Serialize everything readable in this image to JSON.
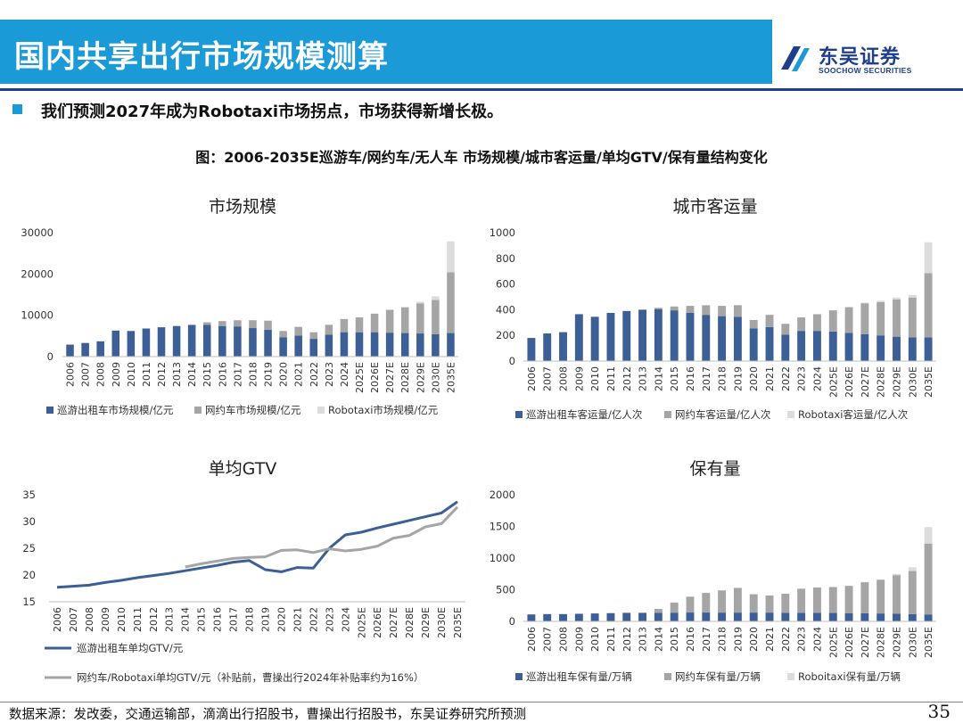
{
  "header": {
    "title": "国内共享出行市场规模测算",
    "logo_cn": "东吴证券",
    "logo_en": "SOOCHOW SECURITIES"
  },
  "bullet": "我们预测2027年成为Robotaxi市场拐点，市场获得新增长极。",
  "figure_caption": "图：2006-2035E巡游车/网约车/无人车 市场规模/城市客运量/单均GTV/保有量结构变化",
  "footer": {
    "source": "数据来源：发改委，交通运输部，滴滴出行招股书，曹操出行招股书，东吴证券研究所预测",
    "page": "35"
  },
  "colors": {
    "series1": "#3c5f95",
    "series2": "#a5a5a5",
    "series3": "#dcdcdc",
    "header": "#1a9bd7"
  },
  "chart_data": [
    {
      "id": "market",
      "type": "bar",
      "stacked": true,
      "title": "市场规模",
      "categories": [
        "2006",
        "2007",
        "2008",
        "2009",
        "2010",
        "2011",
        "2012",
        "2013",
        "2014",
        "2015",
        "2016",
        "2017",
        "2018",
        "2019",
        "2020",
        "2021",
        "2022",
        "2023",
        "2024",
        "2025E",
        "2026E",
        "2027E",
        "2028E",
        "2029E",
        "2030E",
        "2035E"
      ],
      "ylim": [
        0,
        30000
      ],
      "yticks": [
        "30000",
        "20000",
        "10000",
        "0"
      ],
      "series": [
        {
          "name": "巡游出租车市场规模/亿元",
          "values": [
            2900,
            3300,
            3700,
            6300,
            6200,
            6800,
            7100,
            7400,
            7600,
            7700,
            7400,
            7300,
            6900,
            6500,
            4700,
            5100,
            4300,
            5300,
            5900,
            5900,
            5900,
            5800,
            5700,
            5600,
            5400,
            5700
          ]
        },
        {
          "name": "网约车市场规模/亿元",
          "values": [
            0,
            0,
            0,
            0,
            0,
            0,
            0,
            0,
            200,
            600,
            1200,
            1500,
            1900,
            2200,
            1500,
            2100,
            1600,
            2400,
            3200,
            3600,
            4500,
            5500,
            6200,
            7300,
            8300,
            14700
          ]
        },
        {
          "name": "Robotaxi市场规模/亿元",
          "values": [
            0,
            0,
            0,
            0,
            0,
            0,
            0,
            0,
            0,
            0,
            0,
            0,
            0,
            0,
            0,
            0,
            0,
            0,
            0,
            0,
            0,
            100,
            200,
            400,
            900,
            7500
          ]
        }
      ],
      "legend": [
        "巡游出租车市场规模/亿元",
        "网约车市场规模/亿元",
        "Robotaxi市场规模/亿元"
      ]
    },
    {
      "id": "traffic",
      "type": "bar",
      "stacked": true,
      "title": "城市客运量",
      "categories": [
        "2006",
        "2007",
        "2008",
        "2009",
        "2010",
        "2011",
        "2012",
        "2013",
        "2014",
        "2015",
        "2016",
        "2017",
        "2018",
        "2019",
        "2020",
        "2021",
        "2022",
        "2023",
        "2024",
        "2025E",
        "2026E",
        "2027E",
        "2028E",
        "2029E",
        "2030E",
        "2035E"
      ],
      "ylim": [
        0,
        1000
      ],
      "yticks": [
        "1000",
        "800",
        "600",
        "400",
        "200",
        "0"
      ],
      "series": [
        {
          "name": "巡游出租车客运量/亿人次",
          "values": [
            180,
            215,
            225,
            365,
            345,
            375,
            390,
            400,
            405,
            395,
            375,
            360,
            350,
            345,
            255,
            265,
            205,
            235,
            235,
            230,
            220,
            210,
            200,
            190,
            185,
            185
          ]
        },
        {
          "name": "网约车客运量/亿人次",
          "values": [
            0,
            0,
            0,
            0,
            0,
            0,
            0,
            0,
            10,
            30,
            55,
            75,
            80,
            90,
            65,
            95,
            85,
            105,
            130,
            165,
            200,
            240,
            260,
            290,
            310,
            500
          ]
        },
        {
          "name": "Robotaxi客运量/亿人次",
          "values": [
            0,
            0,
            0,
            0,
            0,
            0,
            0,
            0,
            0,
            0,
            0,
            0,
            0,
            0,
            0,
            0,
            0,
            0,
            0,
            0,
            0,
            5,
            10,
            15,
            20,
            240
          ]
        }
      ],
      "legend": [
        "巡游出租车客运量/亿人次",
        "网约车客运量/亿人次",
        "Robotaxi客运量/亿人次"
      ]
    },
    {
      "id": "gtv",
      "type": "line",
      "title": "单均GTV",
      "categories": [
        "2006",
        "2007",
        "2008",
        "2009",
        "2010",
        "2011",
        "2012",
        "2013",
        "2014",
        "2015",
        "2016",
        "2017",
        "2018",
        "2019",
        "2020",
        "2021",
        "2022",
        "2023",
        "2024",
        "2025E",
        "2026E",
        "2027E",
        "2028E",
        "2029E",
        "2030E",
        "2035E"
      ],
      "ylim": [
        15,
        35
      ],
      "yticks": [
        "35",
        "30",
        "25",
        "20",
        "15"
      ],
      "series": [
        {
          "name": "巡游出租车单均GTV/元",
          "values": [
            17.7,
            17.9,
            18.1,
            18.6,
            19.0,
            19.5,
            19.9,
            20.3,
            20.8,
            21.3,
            21.8,
            22.4,
            22.7,
            21.0,
            20.6,
            21.4,
            21.3,
            25.0,
            27.5,
            28.0,
            28.8,
            29.5,
            30.2,
            30.9,
            31.6,
            33.7
          ]
        },
        {
          "name": "网约车/Robotaxi单均GTV/元（补贴前，曹操出行2024年补贴率约为16%）",
          "values": [
            null,
            null,
            null,
            null,
            null,
            null,
            null,
            null,
            21.5,
            22.1,
            22.6,
            23.1,
            23.3,
            23.4,
            24.6,
            24.7,
            24.2,
            24.9,
            24.5,
            24.8,
            25.4,
            26.9,
            27.4,
            29.0,
            29.6,
            32.7
          ]
        }
      ],
      "legend": [
        "巡游出租车单均GTV/元",
        "网约车/Robotaxi单均GTV/元（补贴前，曹操出行2024年补贴率约为16%）"
      ]
    },
    {
      "id": "fleet",
      "type": "bar",
      "stacked": true,
      "title": "保有量",
      "categories": [
        "2006",
        "2007",
        "2008",
        "2009",
        "2010",
        "2011",
        "2012",
        "2013",
        "2014",
        "2015",
        "2016",
        "2017",
        "2018",
        "2019",
        "2020",
        "2021",
        "2022",
        "2023",
        "2024",
        "2025E",
        "2026E",
        "2027E",
        "2028E",
        "2029E",
        "2030E",
        "2035E"
      ],
      "ylim": [
        0,
        2000
      ],
      "yticks": [
        "2000",
        "1500",
        "1000",
        "500",
        "0"
      ],
      "series": [
        {
          "name": "巡游出租车保有量/万辆",
          "values": [
            110,
            115,
            115,
            120,
            125,
            130,
            135,
            135,
            137,
            138,
            140,
            140,
            139,
            139,
            139,
            139,
            136,
            136,
            135,
            133,
            131,
            128,
            125,
            120,
            115,
            110
          ]
        },
        {
          "name": "网约车保有量/万辆",
          "values": [
            0,
            0,
            0,
            0,
            0,
            0,
            0,
            0,
            60,
            160,
            250,
            310,
            350,
            390,
            290,
            270,
            300,
            380,
            400,
            410,
            430,
            490,
            530,
            610,
            680,
            1120
          ]
        },
        {
          "name": "Roboitaxi保有量/万辆",
          "values": [
            0,
            0,
            0,
            0,
            0,
            0,
            0,
            0,
            0,
            0,
            0,
            0,
            0,
            0,
            0,
            0,
            0,
            0,
            0,
            0,
            0,
            5,
            10,
            20,
            60,
            260
          ]
        }
      ],
      "legend": [
        "巡游出租车保有量/万辆",
        "网约车保有量/万辆",
        "Roboitaxi保有量/万辆"
      ]
    }
  ]
}
